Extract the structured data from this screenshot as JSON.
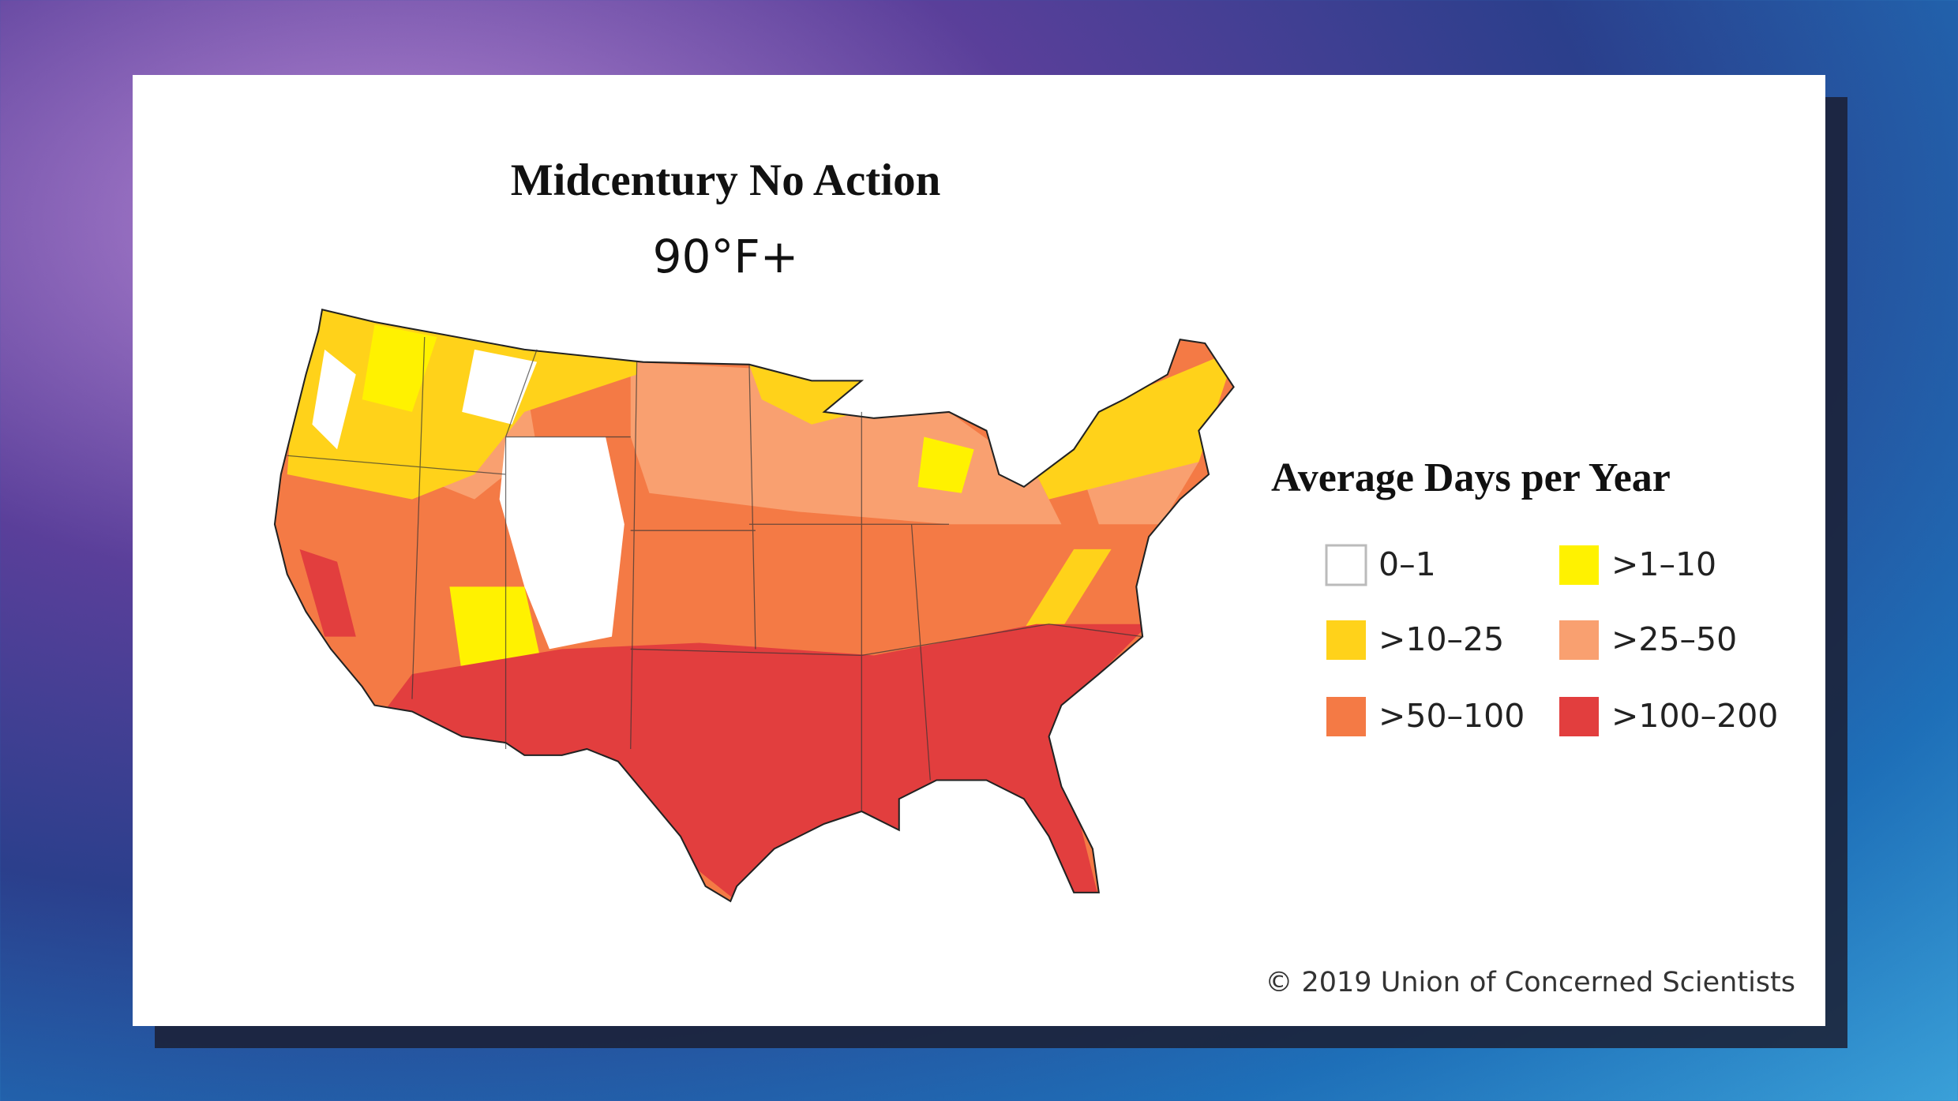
{
  "header": {
    "title": "Midcentury No Action",
    "subtitle": "90°F+"
  },
  "legend": {
    "title": "Average Days per Year",
    "items": [
      {
        "label": "0–1",
        "color": "#ffffff"
      },
      {
        "label": ">1–10",
        "color": "#fff200"
      },
      {
        "label": ">10–25",
        "color": "#ffd21a"
      },
      {
        "label": ">25–50",
        "color": "#f9a070"
      },
      {
        "label": ">50–100",
        "color": "#f47a45"
      },
      {
        "label": ">100–200",
        "color": "#e23e3e"
      }
    ]
  },
  "footer": {
    "credit": "© 2019 Union of Concerned Scientists"
  }
}
